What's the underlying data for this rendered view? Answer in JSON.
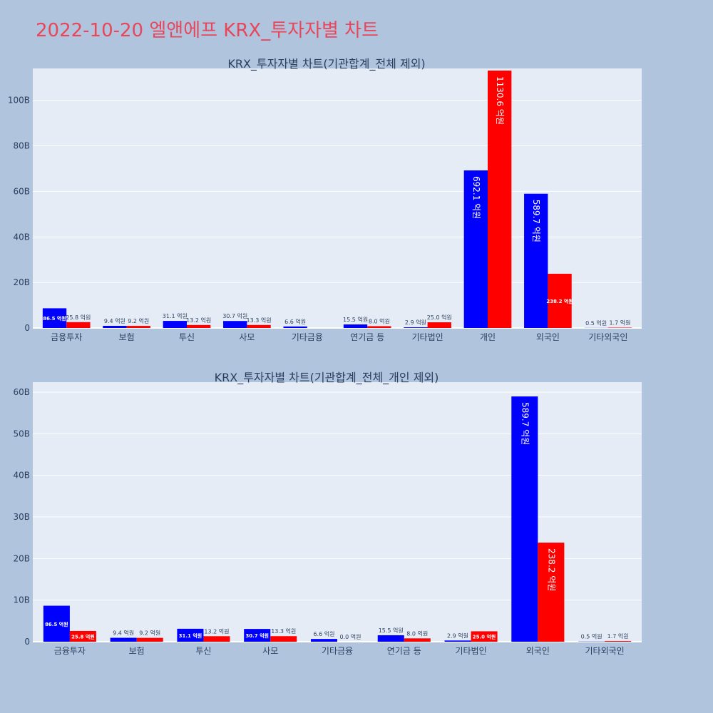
{
  "page_title": "2022-10-20 엘앤에프 KRX_투자자별 차트",
  "colors": {
    "background": "#b0c4de",
    "plot_bg": "#e5ecf6",
    "buy": "#0000ff",
    "sell": "#ff0000",
    "title": "#e8465a",
    "text": "#2a3f5f"
  },
  "chart_data": [
    {
      "type": "bar",
      "title": "KRX_투자자별 차트(기관합계_전체 제외)",
      "categories": [
        "금융투자",
        "보험",
        "투신",
        "사모",
        "기타금융",
        "연기금 등",
        "기타법인",
        "개인",
        "외국인",
        "기타외국인"
      ],
      "y_tick_labels": [
        "0",
        "20B",
        "40B",
        "60B",
        "80B",
        "100B"
      ],
      "ylim": [
        0,
        114000000000
      ],
      "series": [
        {
          "values": [
            8650000000,
            940000000,
            3110000000,
            3070000000,
            660000000,
            1550000000,
            290000000,
            69210000000,
            58970000000,
            50000000
          ],
          "labels": [
            "86.5 억원",
            "9.4 억원",
            "31.1 억원",
            "30.7 억원",
            "6.6 억원",
            "15.5 억원",
            "2.9 억원",
            "692.1 억원",
            "589.7 억원",
            "0.5 억원"
          ]
        },
        {
          "values": [
            2580000000,
            920000000,
            1320000000,
            1330000000,
            0,
            800000000,
            2500000000,
            113060000000,
            23820000000,
            170000000
          ],
          "labels": [
            "25.8 억원",
            "9.2 억원",
            "13.2 억원",
            "13.3 억원",
            "",
            "8.0 억원",
            "25.0 억원",
            "1130.6 억원",
            "238.2 억원",
            "1.7 억원"
          ]
        }
      ]
    },
    {
      "type": "bar",
      "title": "KRX_투자자별 차트(기관합계_전체_개인 제외)",
      "categories": [
        "금융투자",
        "보험",
        "투신",
        "사모",
        "기타금융",
        "연기금 등",
        "기타법인",
        "외국인",
        "기타외국인"
      ],
      "y_tick_labels": [
        "0",
        "10B",
        "20B",
        "30B",
        "40B",
        "50B",
        "60B"
      ],
      "ylim": [
        0,
        62400000000
      ],
      "series": [
        {
          "values": [
            8650000000,
            940000000,
            3110000000,
            3070000000,
            660000000,
            1550000000,
            290000000,
            58970000000,
            50000000
          ],
          "labels": [
            "86.5 억원",
            "9.4 억원",
            "31.1 억원",
            "30.7 억원",
            "6.6 억원",
            "15.5 억원",
            "2.9 억원",
            "589.7 억원",
            "0.5 억원"
          ]
        },
        {
          "values": [
            2580000000,
            920000000,
            1320000000,
            1330000000,
            0,
            800000000,
            2500000000,
            23820000000,
            170000000
          ],
          "labels": [
            "25.8 억원",
            "9.2 억원",
            "13.2 억원",
            "13.3 억원",
            "0.0 억원",
            "8.0 억원",
            "25.0 억원",
            "238.2 억원",
            "1.7 억원"
          ]
        }
      ]
    }
  ]
}
